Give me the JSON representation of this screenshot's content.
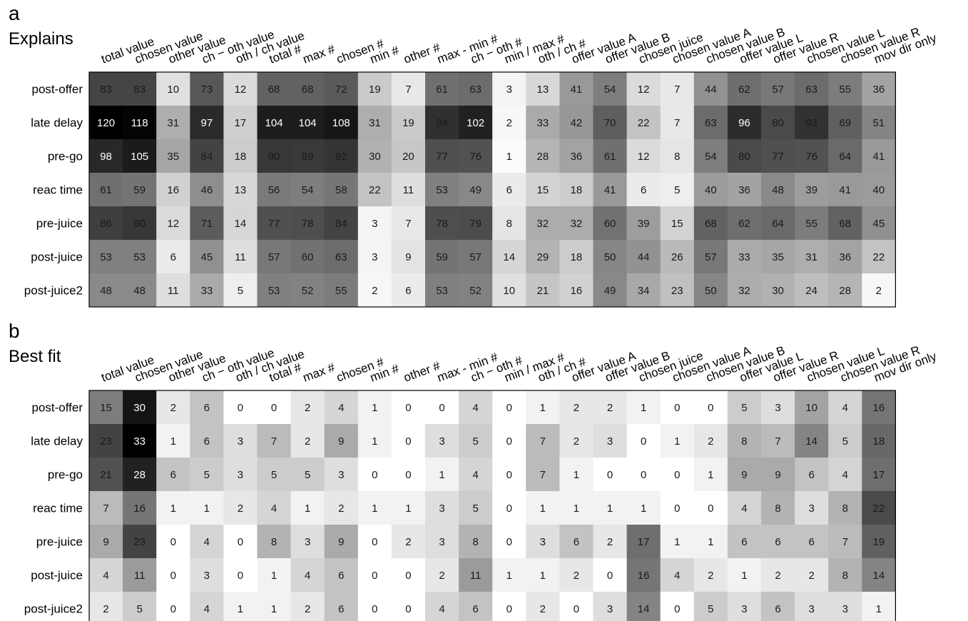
{
  "chart_data": [
    {
      "type": "heatmap",
      "panel_label": "a",
      "title": "Explains",
      "columns": [
        "total value",
        "chosen value",
        "other value",
        "ch − oth value",
        "oth / ch value",
        "total #",
        "max #",
        "chosen #",
        "min #",
        "other #",
        "max - min #",
        "ch − oth #",
        "min / max #",
        "oth / ch #",
        "offer value A",
        "offer value B",
        "chosen juice",
        "chosen value A",
        "chosen value B",
        "offer value L",
        "offer value R",
        "chosen value L",
        "chosen value R",
        "mov dir only"
      ],
      "rows": [
        "post-offer",
        "late delay",
        "pre-go",
        "reac time",
        "pre-juice",
        "post-juice",
        "post-juice2"
      ],
      "values": [
        [
          83,
          83,
          10,
          73,
          12,
          68,
          68,
          72,
          19,
          7,
          61,
          63,
          3,
          13,
          41,
          54,
          12,
          7,
          44,
          62,
          57,
          63,
          55,
          36
        ],
        [
          120,
          118,
          31,
          97,
          17,
          104,
          104,
          108,
          31,
          19,
          94,
          102,
          2,
          33,
          42,
          70,
          22,
          7,
          63,
          96,
          80,
          93,
          69,
          51
        ],
        [
          98,
          105,
          35,
          84,
          18,
          90,
          89,
          92,
          30,
          20,
          77,
          76,
          1,
          28,
          36,
          61,
          12,
          8,
          54,
          80,
          77,
          76,
          64,
          41
        ],
        [
          61,
          59,
          16,
          46,
          13,
          56,
          54,
          58,
          22,
          11,
          53,
          49,
          6,
          15,
          18,
          41,
          6,
          5,
          40,
          36,
          48,
          39,
          41,
          40
        ],
        [
          86,
          90,
          12,
          71,
          14,
          77,
          78,
          84,
          3,
          7,
          78,
          79,
          8,
          32,
          32,
          60,
          39,
          15,
          68,
          62,
          64,
          55,
          68,
          45
        ],
        [
          53,
          53,
          6,
          45,
          11,
          57,
          60,
          63,
          3,
          9,
          59,
          57,
          14,
          29,
          18,
          50,
          44,
          26,
          57,
          33,
          35,
          31,
          36,
          22
        ],
        [
          48,
          48,
          11,
          33,
          5,
          53,
          52,
          55,
          2,
          6,
          53,
          52,
          10,
          21,
          16,
          49,
          34,
          23,
          50,
          32,
          30,
          24,
          28,
          2
        ]
      ],
      "color_scale": {
        "min": 0,
        "max": 120,
        "low_color": "#ffffff",
        "high_color": "#000000"
      }
    },
    {
      "type": "heatmap",
      "panel_label": "b",
      "title": "Best fit",
      "columns": [
        "total value",
        "chosen value",
        "other value",
        "ch − oth value",
        "oth / ch value",
        "total #",
        "max #",
        "chosen #",
        "min #",
        "other #",
        "max - min #",
        "ch − oth #",
        "min / max #",
        "oth / ch #",
        "offer value A",
        "offer value B",
        "chosen juice",
        "chosen value A",
        "chosen value B",
        "offer value L",
        "offer value R",
        "chosen value L",
        "chosen value R",
        "mov dir only"
      ],
      "rows": [
        "post-offer",
        "late delay",
        "pre-go",
        "reac time",
        "pre-juice",
        "post-juice",
        "post-juice2"
      ],
      "values": [
        [
          15,
          30,
          2,
          6,
          0,
          0,
          2,
          4,
          1,
          0,
          0,
          4,
          0,
          1,
          2,
          2,
          1,
          0,
          0,
          5,
          3,
          10,
          4,
          16
        ],
        [
          23,
          33,
          1,
          6,
          3,
          7,
          2,
          9,
          1,
          0,
          3,
          5,
          0,
          7,
          2,
          3,
          0,
          1,
          2,
          8,
          7,
          14,
          5,
          18
        ],
        [
          21,
          28,
          6,
          5,
          3,
          5,
          5,
          3,
          0,
          0,
          1,
          4,
          0,
          7,
          1,
          0,
          0,
          0,
          1,
          9,
          9,
          6,
          4,
          17
        ],
        [
          7,
          16,
          1,
          1,
          2,
          4,
          1,
          2,
          1,
          1,
          3,
          5,
          0,
          1,
          1,
          1,
          1,
          0,
          0,
          4,
          8,
          3,
          8,
          22
        ],
        [
          9,
          23,
          0,
          4,
          0,
          8,
          3,
          9,
          0,
          2,
          3,
          8,
          0,
          3,
          6,
          2,
          17,
          1,
          1,
          6,
          6,
          6,
          7,
          19
        ],
        [
          4,
          11,
          0,
          3,
          0,
          1,
          4,
          6,
          0,
          0,
          2,
          11,
          1,
          1,
          2,
          0,
          16,
          4,
          2,
          1,
          2,
          2,
          8,
          14
        ],
        [
          2,
          5,
          0,
          4,
          1,
          1,
          2,
          6,
          0,
          0,
          4,
          6,
          0,
          2,
          0,
          3,
          14,
          0,
          5,
          3,
          6,
          3,
          3,
          1
        ]
      ],
      "color_scale": {
        "min": 0,
        "max": 33,
        "low_color": "#ffffff",
        "high_color": "#000000"
      }
    }
  ]
}
